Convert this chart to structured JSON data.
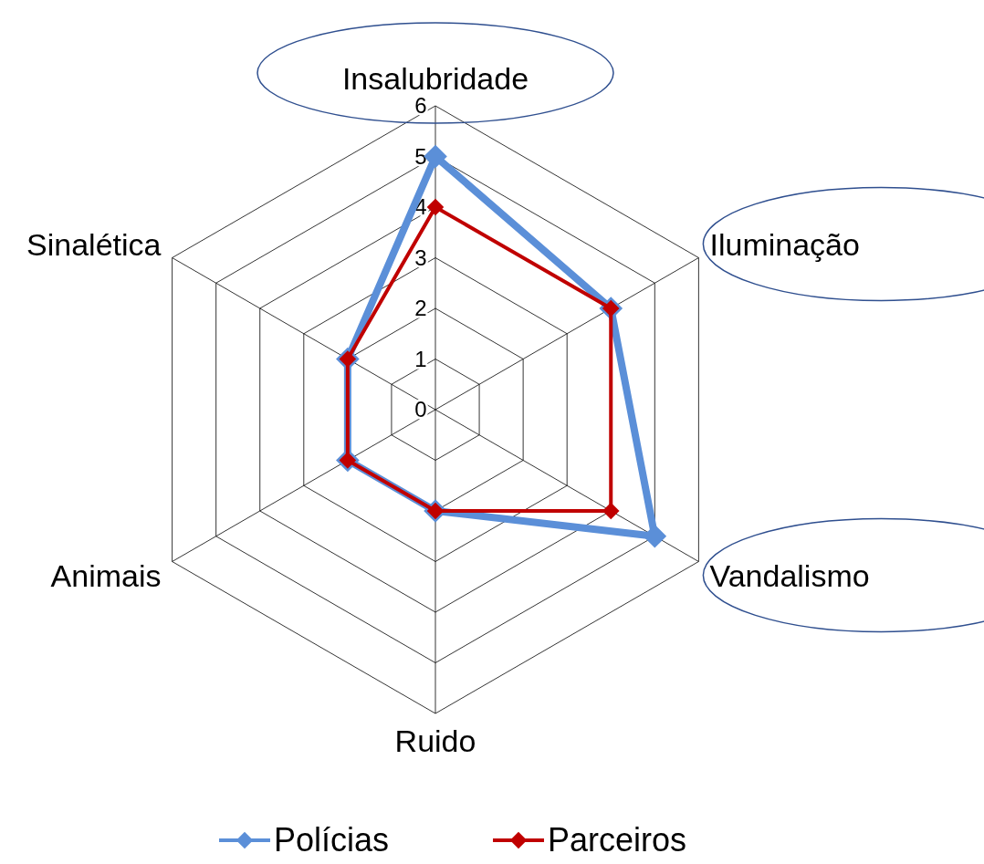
{
  "chart_data": {
    "type": "radar",
    "categories": [
      "Insalubridade",
      "Iluminação",
      "Vandalismo",
      "Ruido",
      "Animais",
      "Sinalética"
    ],
    "series": [
      {
        "name": "Polícias",
        "color": "#5b8fd8",
        "values": [
          5,
          4,
          5,
          2,
          2,
          2
        ]
      },
      {
        "name": "Parceiros",
        "color": "#c00000",
        "values": [
          4,
          4,
          4,
          2,
          2,
          2
        ]
      }
    ],
    "ylim": [
      0,
      6
    ],
    "yticks": [
      0,
      1,
      2,
      3,
      4,
      5,
      6
    ],
    "grid": true,
    "legend": "bottom",
    "marker": "diamond",
    "line_style": "solid"
  }
}
